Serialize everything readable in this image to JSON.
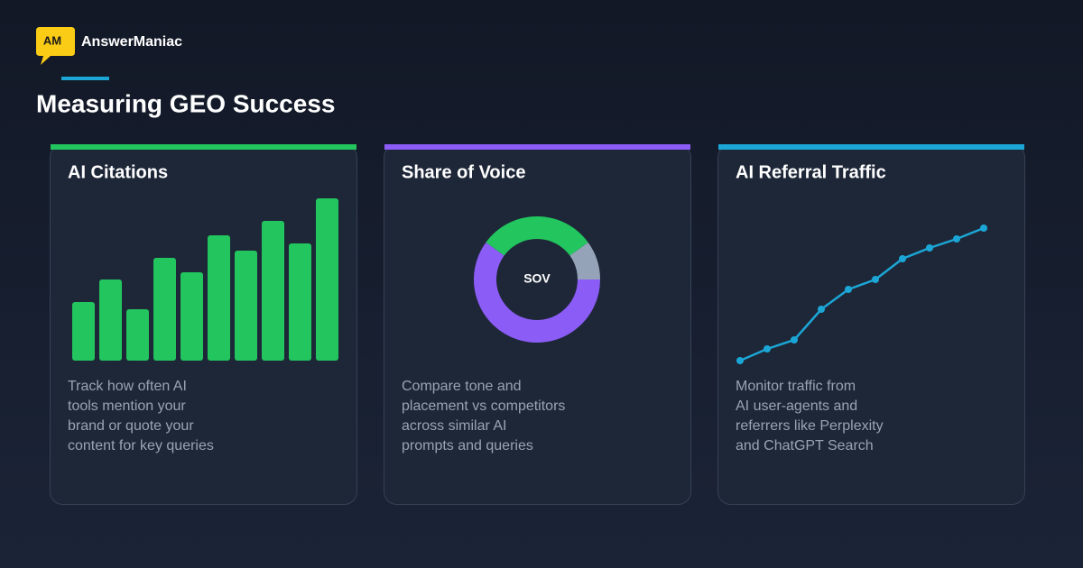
{
  "brand": {
    "logo": "AM",
    "name": "AnswerManiac"
  },
  "title": "Measuring GEO Success",
  "cards": [
    {
      "title": "AI Citations",
      "accent": "#22c55e",
      "description": [
        "Track how often AI",
        "tools mention your",
        "brand or quote your",
        "content for key queries"
      ],
      "chart": {
        "type": "bar",
        "color": "#22c55e",
        "values": [
          65,
          90,
          57,
          114,
          98,
          139,
          122,
          155,
          130,
          180
        ]
      }
    },
    {
      "title": "Share of Voice",
      "accent": "#8b5cf6",
      "description": [
        "Compare tone and",
        "placement vs competitors",
        "across similar AI",
        "prompts and queries"
      ],
      "chart": {
        "type": "pie",
        "center_label": "SOV",
        "values": [
          30,
          10,
          60
        ],
        "colors": [
          "#22c55e",
          "#94a3b8",
          "#8b5cf6"
        ]
      }
    },
    {
      "title": "AI Referral Traffic",
      "accent": "#1ba6d6",
      "description": [
        "Monitor traffic from",
        "AI user-agents and",
        "referrers like Perplexity",
        "and ChatGPT Search"
      ],
      "chart": {
        "type": "line",
        "color": "#1ba6d6",
        "values": [
          0,
          13,
          23,
          57,
          79,
          90,
          113,
          125,
          135,
          147
        ]
      }
    }
  ]
}
